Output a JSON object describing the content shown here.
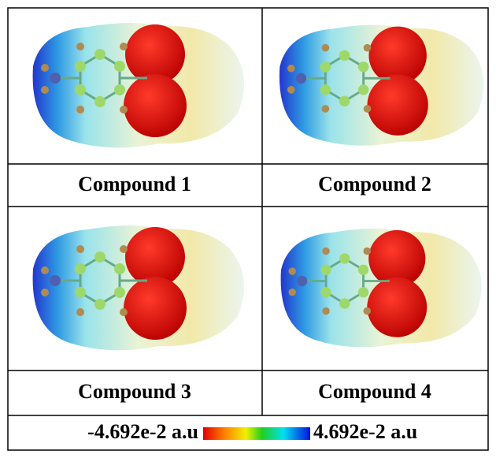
{
  "cells": [
    {
      "label": "Compound 1"
    },
    {
      "label": "Compound 2"
    },
    {
      "label": "Compound 3"
    },
    {
      "label": "Compound 4"
    }
  ],
  "scale": {
    "min_label": "-4.692e-2 a.u",
    "max_label": "4.692e-2 a.u"
  }
}
